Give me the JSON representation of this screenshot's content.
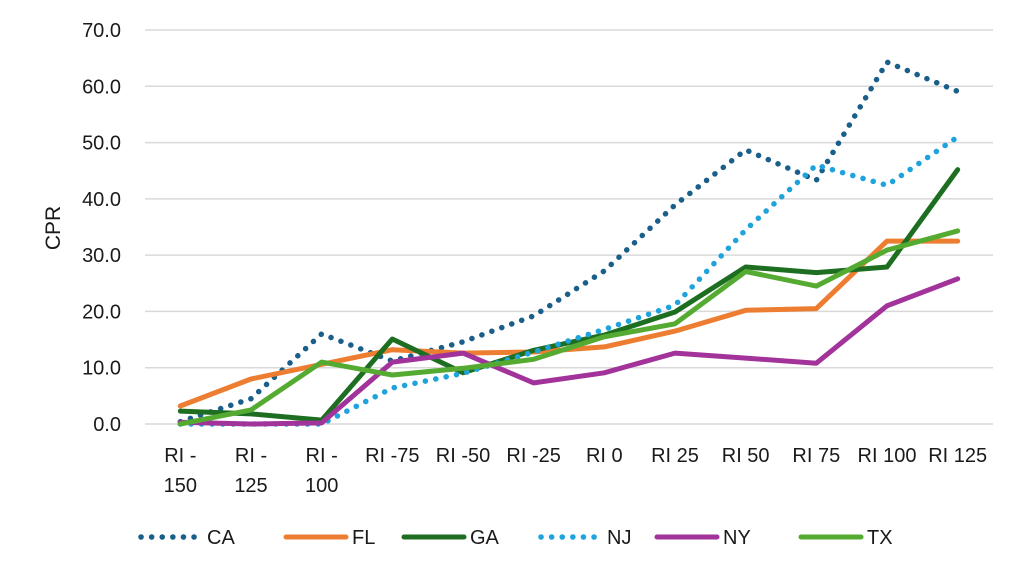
{
  "chart_data": {
    "type": "line",
    "title": "",
    "xlabel": "",
    "ylabel": "CPR",
    "ylim": [
      0,
      70
    ],
    "yticks": [
      "0.0",
      "10.0",
      "20.0",
      "30.0",
      "40.0",
      "50.0",
      "60.0",
      "70.0"
    ],
    "grid": true,
    "legend_position": "bottom",
    "categories": [
      "RI -150",
      "RI -125",
      "RI -100",
      "RI -75",
      "RI -50",
      "RI -25",
      "RI 0",
      "RI 25",
      "RI 50",
      "RI 75",
      "RI 100",
      "RI 125"
    ],
    "category_label_lines": [
      [
        "RI -",
        "150"
      ],
      [
        "RI -",
        "125"
      ],
      [
        "RI -",
        "100"
      ],
      [
        "RI -75"
      ],
      [
        "RI -50"
      ],
      [
        "RI -25"
      ],
      [
        "RI 0"
      ],
      [
        "RI 25"
      ],
      [
        "RI 50"
      ],
      [
        "RI 75"
      ],
      [
        "RI 100"
      ],
      [
        "RI 125"
      ]
    ],
    "series": [
      {
        "name": "CA",
        "color": "#1a5f8a",
        "style": "dotted",
        "values": [
          0.4,
          4.5,
          16.0,
          11.2,
          14.6,
          19.2,
          27.2,
          38.9,
          48.7,
          43.3,
          64.3,
          59.1
        ]
      },
      {
        "name": "FL",
        "color": "#ed7d31",
        "style": "solid",
        "values": [
          3.2,
          8.0,
          10.6,
          13.2,
          12.6,
          12.8,
          13.7,
          16.5,
          20.2,
          20.5,
          32.5,
          32.5
        ]
      },
      {
        "name": "GA",
        "color": "#1e6e22",
        "style": "solid",
        "values": [
          2.3,
          1.8,
          0.7,
          15.1,
          9.1,
          13.1,
          15.8,
          19.9,
          27.9,
          26.9,
          27.9,
          45.2
        ]
      },
      {
        "name": "NJ",
        "color": "#1ea3dc",
        "style": "dotted",
        "values": [
          0.0,
          0.0,
          0.0,
          6.4,
          9.0,
          12.8,
          16.8,
          21.1,
          34.5,
          46.0,
          42.4,
          51.0
        ]
      },
      {
        "name": "NY",
        "color": "#a2339b",
        "style": "solid",
        "values": [
          0.3,
          0.0,
          0.2,
          11.0,
          12.6,
          7.3,
          9.1,
          12.6,
          11.7,
          10.8,
          21.0,
          25.8
        ]
      },
      {
        "name": "TX",
        "color": "#55ab32",
        "style": "solid",
        "values": [
          0.0,
          2.5,
          11.0,
          8.7,
          9.9,
          11.5,
          15.5,
          17.8,
          27.1,
          24.5,
          30.9,
          34.3
        ]
      }
    ]
  }
}
